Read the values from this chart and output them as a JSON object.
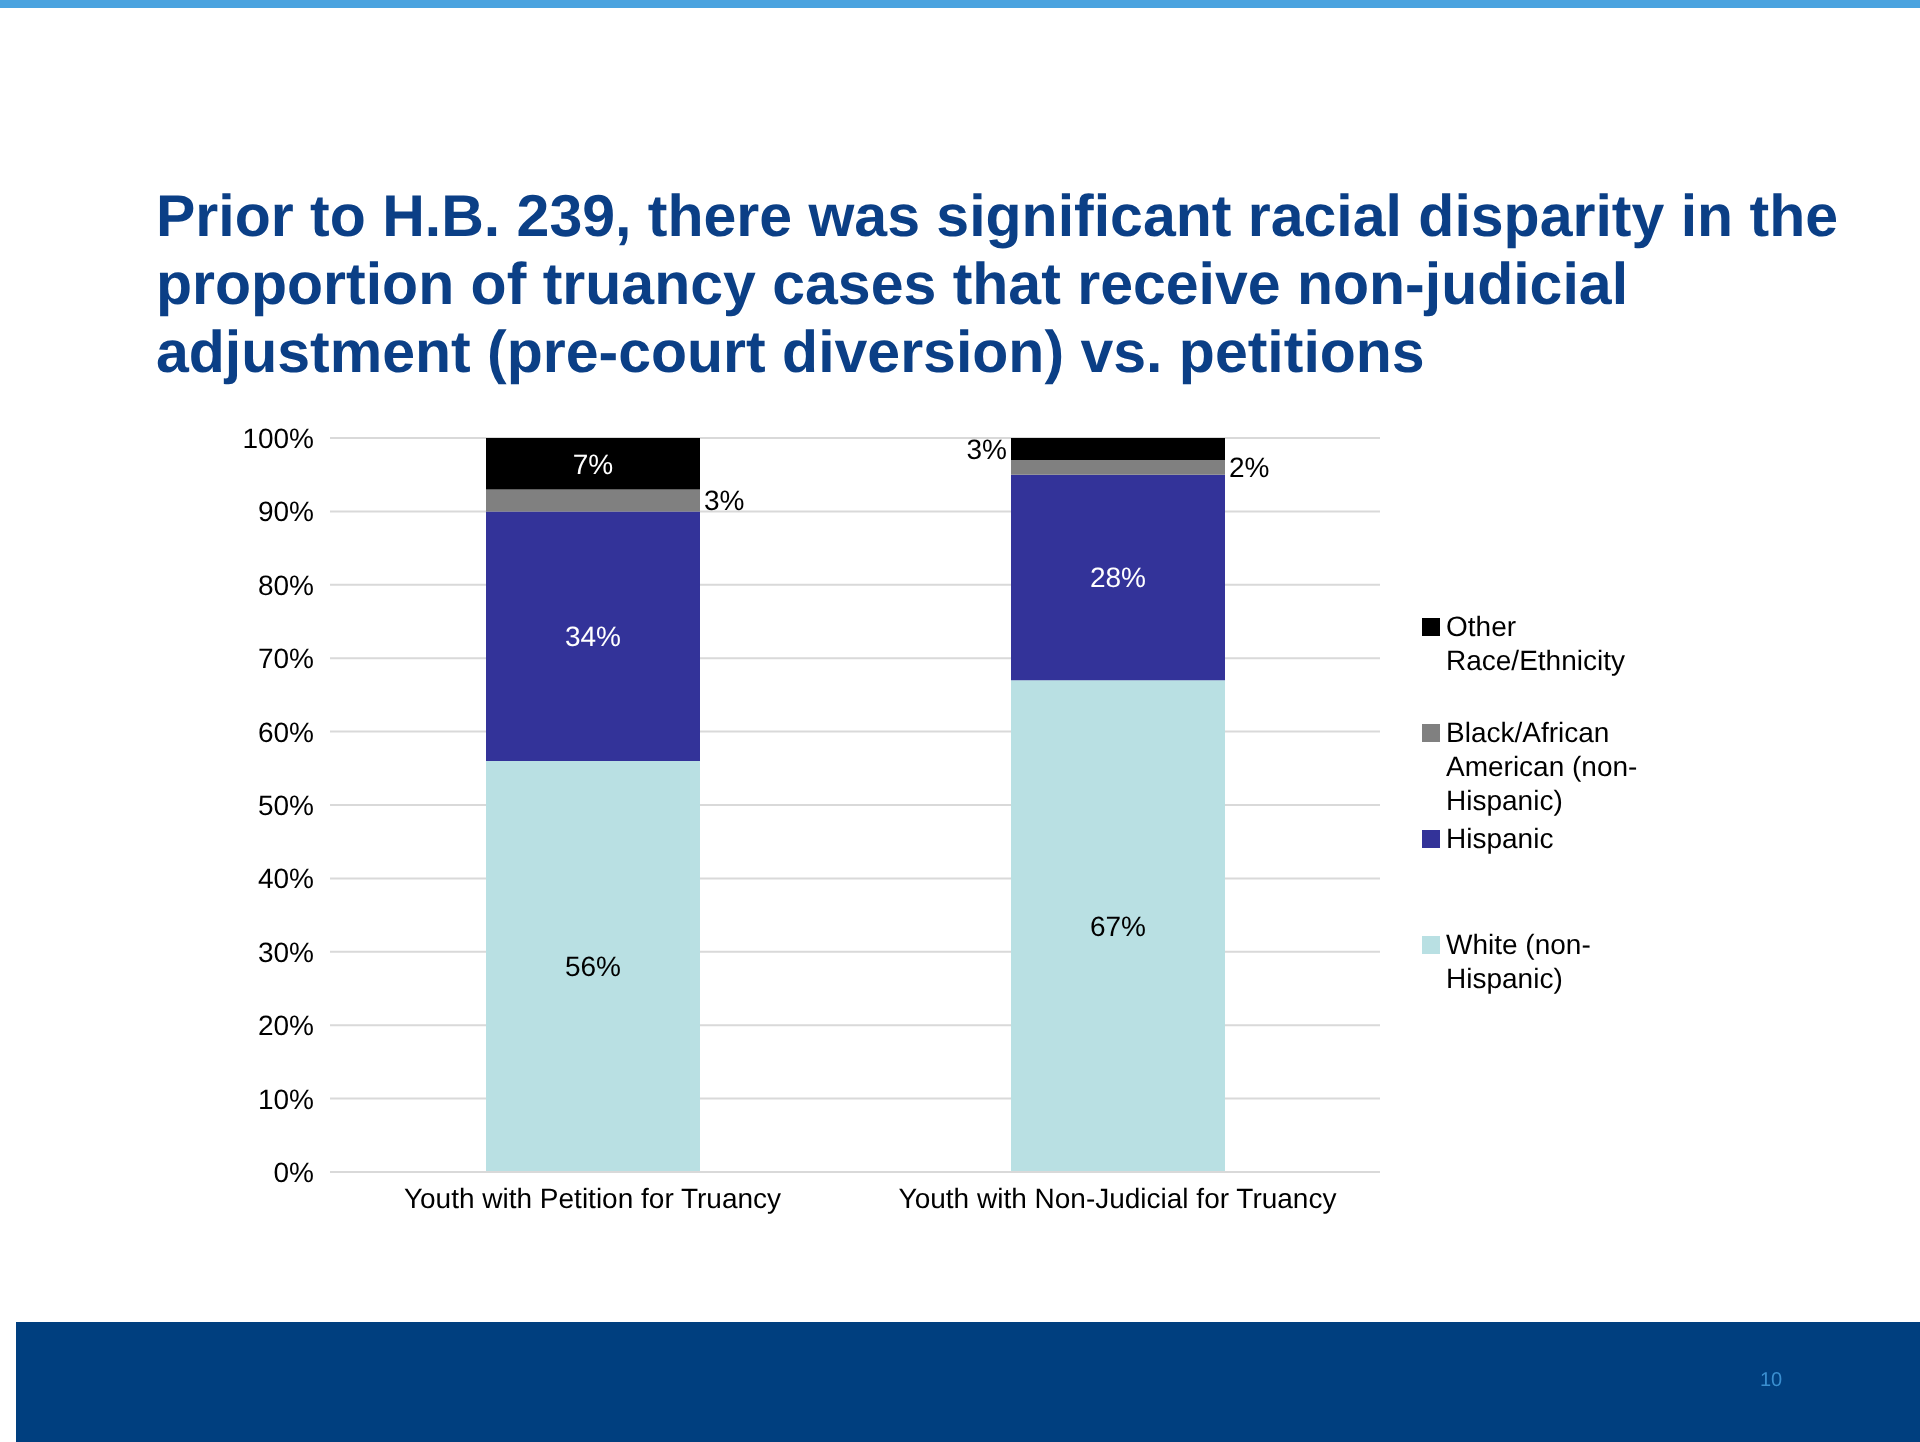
{
  "chart_data": {
    "type": "bar",
    "title": "Prior to H.B. 239, there was significant racial disparity in the proportion of truancy cases that receive non-judicial adjustment (pre-court diversion) vs. petitions",
    "categories": [
      "Youth with Petition for Truancy",
      "Youth with Non-Judicial for Truancy"
    ],
    "stacked": true,
    "series": [
      {
        "name": "White (non-Hispanic)",
        "color": "#b9e0e3",
        "values": [
          56,
          67
        ],
        "value_labels": [
          "56%",
          "67%"
        ]
      },
      {
        "name": "Hispanic",
        "color": "#333399",
        "values": [
          34,
          28
        ],
        "value_labels": [
          "34%",
          "28%"
        ]
      },
      {
        "name": "Black/African American (non-Hispanic)",
        "color": "#808080",
        "values": [
          3,
          2
        ],
        "value_labels": [
          "3%",
          "2%"
        ]
      },
      {
        "name": "Other Race/Ethnicity",
        "color": "#000000",
        "values": [
          7,
          3
        ],
        "value_labels": [
          "7%",
          "3%"
        ]
      }
    ],
    "ylim": [
      0,
      100
    ],
    "yticks": [
      {
        "value": 0,
        "label": "0%"
      },
      {
        "value": 10,
        "label": "10%"
      },
      {
        "value": 20,
        "label": "20%"
      },
      {
        "value": 30,
        "label": "30%"
      },
      {
        "value": 40,
        "label": "40%"
      },
      {
        "value": 50,
        "label": "50%"
      },
      {
        "value": 60,
        "label": "60%"
      },
      {
        "value": 70,
        "label": "70%"
      },
      {
        "value": 80,
        "label": "80%"
      },
      {
        "value": 90,
        "label": "90%"
      },
      {
        "value": 100,
        "label": "100%"
      }
    ],
    "grid": "y",
    "legend": "right",
    "annotations": [
      "10"
    ]
  }
}
